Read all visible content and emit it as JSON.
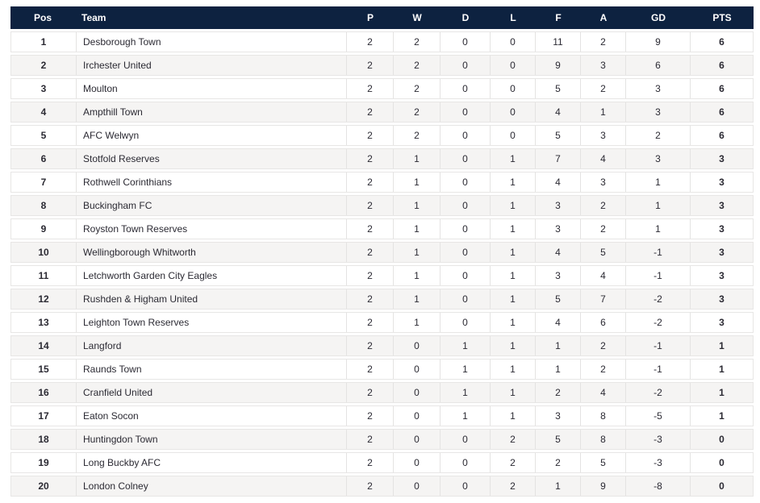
{
  "table": {
    "columns": [
      "Pos",
      "Team",
      "P",
      "W",
      "D",
      "L",
      "F",
      "A",
      "GD",
      "PTS"
    ],
    "rows": [
      {
        "pos": "1",
        "team": "Desborough Town",
        "p": "2",
        "w": "2",
        "d": "0",
        "l": "0",
        "f": "11",
        "a": "2",
        "gd": "9",
        "pts": "6"
      },
      {
        "pos": "2",
        "team": "Irchester United",
        "p": "2",
        "w": "2",
        "d": "0",
        "l": "0",
        "f": "9",
        "a": "3",
        "gd": "6",
        "pts": "6"
      },
      {
        "pos": "3",
        "team": "Moulton",
        "p": "2",
        "w": "2",
        "d": "0",
        "l": "0",
        "f": "5",
        "a": "2",
        "gd": "3",
        "pts": "6"
      },
      {
        "pos": "4",
        "team": "Ampthill Town",
        "p": "2",
        "w": "2",
        "d": "0",
        "l": "0",
        "f": "4",
        "a": "1",
        "gd": "3",
        "pts": "6"
      },
      {
        "pos": "5",
        "team": "AFC Welwyn",
        "p": "2",
        "w": "2",
        "d": "0",
        "l": "0",
        "f": "5",
        "a": "3",
        "gd": "2",
        "pts": "6"
      },
      {
        "pos": "6",
        "team": "Stotfold Reserves",
        "p": "2",
        "w": "1",
        "d": "0",
        "l": "1",
        "f": "7",
        "a": "4",
        "gd": "3",
        "pts": "3"
      },
      {
        "pos": "7",
        "team": "Rothwell Corinthians",
        "p": "2",
        "w": "1",
        "d": "0",
        "l": "1",
        "f": "4",
        "a": "3",
        "gd": "1",
        "pts": "3"
      },
      {
        "pos": "8",
        "team": "Buckingham FC",
        "p": "2",
        "w": "1",
        "d": "0",
        "l": "1",
        "f": "3",
        "a": "2",
        "gd": "1",
        "pts": "3"
      },
      {
        "pos": "9",
        "team": "Royston Town Reserves",
        "p": "2",
        "w": "1",
        "d": "0",
        "l": "1",
        "f": "3",
        "a": "2",
        "gd": "1",
        "pts": "3"
      },
      {
        "pos": "10",
        "team": "Wellingborough Whitworth",
        "p": "2",
        "w": "1",
        "d": "0",
        "l": "1",
        "f": "4",
        "a": "5",
        "gd": "-1",
        "pts": "3"
      },
      {
        "pos": "11",
        "team": "Letchworth Garden City Eagles",
        "p": "2",
        "w": "1",
        "d": "0",
        "l": "1",
        "f": "3",
        "a": "4",
        "gd": "-1",
        "pts": "3"
      },
      {
        "pos": "12",
        "team": "Rushden & Higham United",
        "p": "2",
        "w": "1",
        "d": "0",
        "l": "1",
        "f": "5",
        "a": "7",
        "gd": "-2",
        "pts": "3"
      },
      {
        "pos": "13",
        "team": "Leighton Town Reserves",
        "p": "2",
        "w": "1",
        "d": "0",
        "l": "1",
        "f": "4",
        "a": "6",
        "gd": "-2",
        "pts": "3"
      },
      {
        "pos": "14",
        "team": "Langford",
        "p": "2",
        "w": "0",
        "d": "1",
        "l": "1",
        "f": "1",
        "a": "2",
        "gd": "-1",
        "pts": "1"
      },
      {
        "pos": "15",
        "team": "Raunds Town",
        "p": "2",
        "w": "0",
        "d": "1",
        "l": "1",
        "f": "1",
        "a": "2",
        "gd": "-1",
        "pts": "1"
      },
      {
        "pos": "16",
        "team": "Cranfield United",
        "p": "2",
        "w": "0",
        "d": "1",
        "l": "1",
        "f": "2",
        "a": "4",
        "gd": "-2",
        "pts": "1"
      },
      {
        "pos": "17",
        "team": "Eaton Socon",
        "p": "2",
        "w": "0",
        "d": "1",
        "l": "1",
        "f": "3",
        "a": "8",
        "gd": "-5",
        "pts": "1"
      },
      {
        "pos": "18",
        "team": "Huntingdon Town",
        "p": "2",
        "w": "0",
        "d": "0",
        "l": "2",
        "f": "5",
        "a": "8",
        "gd": "-3",
        "pts": "0"
      },
      {
        "pos": "19",
        "team": "Long Buckby AFC",
        "p": "2",
        "w": "0",
        "d": "0",
        "l": "2",
        "f": "2",
        "a": "5",
        "gd": "-3",
        "pts": "0"
      },
      {
        "pos": "20",
        "team": "London Colney",
        "p": "2",
        "w": "0",
        "d": "0",
        "l": "2",
        "f": "1",
        "a": "9",
        "gd": "-8",
        "pts": "0"
      }
    ]
  },
  "colors": {
    "header_bg": "#0d2240",
    "header_text": "#ffffff",
    "row_bg": "#ffffff",
    "row_alt_bg": "#f5f4f3",
    "row_border": "#e7e6e5",
    "cell_separator": "#e4e3e2",
    "body_text": "#2b2a33"
  }
}
